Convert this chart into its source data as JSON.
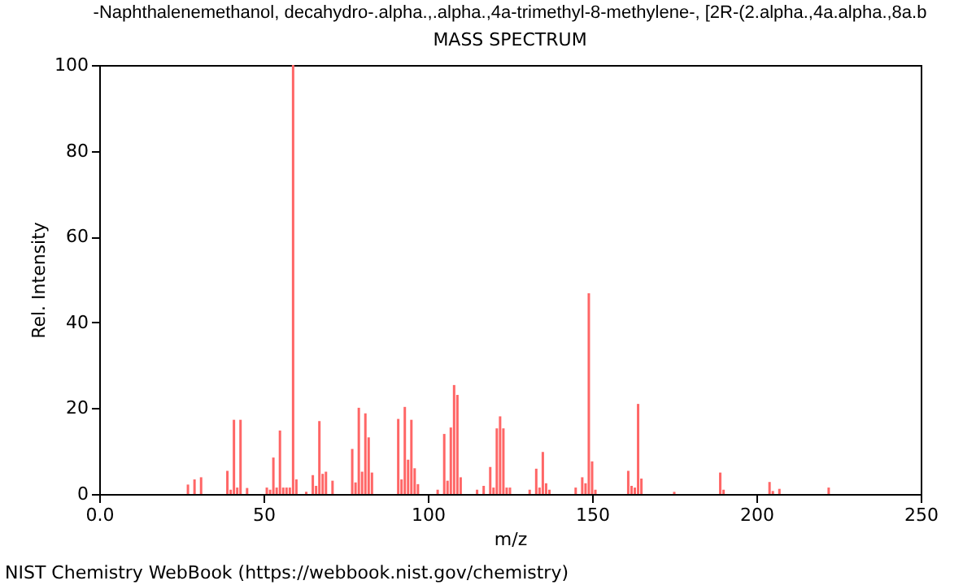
{
  "chart_data": {
    "type": "bar",
    "title": "-Naphthalenemethanol, decahydro-.alpha.,.alpha.,4a-trimethyl-8-methylene-, [2R-(2.alpha.,4a.alpha.,8a.b",
    "subtitle": "MASS SPECTRUM",
    "xlabel": "m/z",
    "ylabel": "Rel. Intensity",
    "x": [
      27,
      29,
      31,
      39,
      40,
      41,
      42,
      43,
      45,
      51,
      52,
      53,
      54,
      55,
      56,
      57,
      58,
      59,
      60,
      63,
      65,
      66,
      67,
      68,
      69,
      71,
      77,
      78,
      79,
      80,
      81,
      82,
      83,
      91,
      92,
      93,
      94,
      95,
      96,
      97,
      103,
      105,
      106,
      107,
      108,
      109,
      110,
      115,
      117,
      119,
      120,
      121,
      122,
      123,
      124,
      125,
      131,
      133,
      134,
      135,
      136,
      137,
      145,
      147,
      148,
      149,
      150,
      151,
      161,
      162,
      163,
      164,
      165,
      175,
      189,
      190,
      204,
      205,
      207,
      222
    ],
    "values": [
      2.2,
      3.4,
      3.9,
      5.4,
      1,
      17.3,
      1.5,
      17.3,
      1.4,
      1.5,
      1,
      8.5,
      1.5,
      14.8,
      1.5,
      1.5,
      1.5,
      100,
      3.4,
      0.5,
      4.4,
      1.9,
      17,
      4.7,
      5.2,
      3.1,
      10.5,
      2.7,
      20.1,
      5.2,
      18.8,
      13.2,
      5,
      17.5,
      3.4,
      20.3,
      8,
      17.3,
      6,
      2.3,
      1,
      14,
      3.1,
      15.5,
      25.4,
      23.1,
      3.9,
      1,
      1.9,
      6.3,
      1.5,
      15.3,
      18.1,
      15.3,
      1.5,
      1.5,
      1,
      5.9,
      1.5,
      9.8,
      2.5,
      1,
      1.5,
      3.9,
      2.5,
      46.8,
      7.6,
      1,
      5.4,
      1.9,
      1.5,
      21,
      3.6,
      0.5,
      5,
      1,
      2.8,
      0.7,
      1.2,
      1.5
    ],
    "color": "#ff6666",
    "xlim": [
      0,
      250
    ],
    "xticks": [
      {
        "value": 0,
        "label": "0.0"
      },
      50,
      100,
      150,
      200,
      250
    ],
    "ylim": [
      0,
      100
    ],
    "yticks": [
      0,
      20,
      40,
      60,
      80,
      100
    ],
    "grid": false,
    "annotations": [
      "NIST Chemistry WebBook (https://webbook.nist.gov/chemistry)"
    ]
  }
}
